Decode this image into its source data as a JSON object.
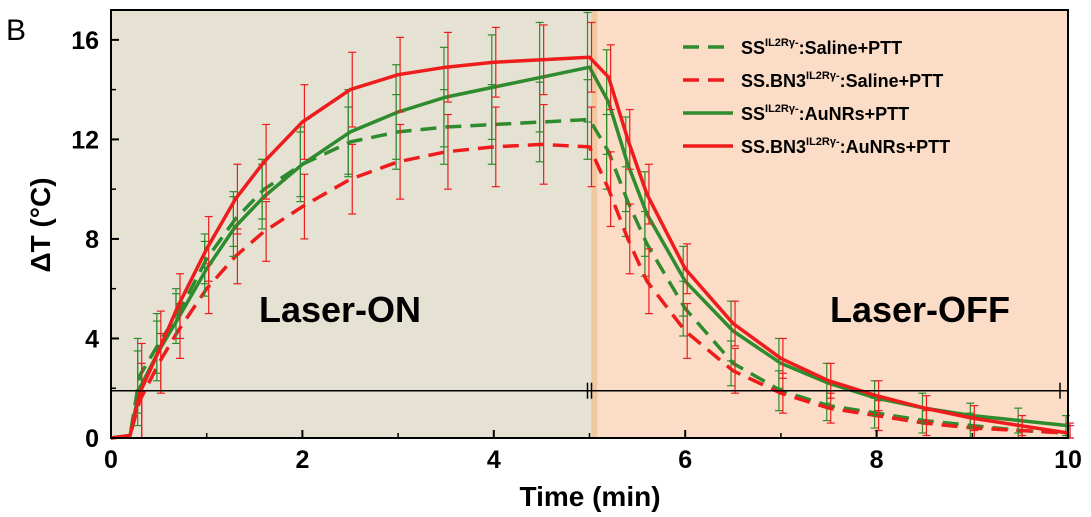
{
  "chart_data": {
    "type": "line",
    "panel_label": "B",
    "xlabel": "Time (min)",
    "ylabel": "ΔT (°C)",
    "xlim": [
      0,
      10
    ],
    "ylim": [
      0,
      17.2
    ],
    "xticks": [
      "0",
      "2",
      "4",
      "6",
      "8",
      "10"
    ],
    "yticks": [
      "0",
      "4",
      "8",
      "12",
      "16"
    ],
    "regions": [
      {
        "label": "Laser-ON",
        "x": [
          0,
          5.05
        ],
        "color": "#e6e2d3"
      },
      {
        "label": "Laser-OFF",
        "x": [
          5.05,
          10
        ],
        "color": "#fbdcc6"
      }
    ],
    "span_bar": {
      "y": 1.9,
      "x": [
        0,
        5,
        10
      ]
    },
    "series": [
      {
        "legend_base": "SS",
        "legend_sup": "IL2Rγ-",
        "legend_rest": ":Saline+PTT",
        "color": "#2e8b2e",
        "dash": true,
        "x": [
          0,
          0.2,
          0.3,
          0.5,
          0.7,
          1.0,
          1.3,
          1.6,
          2.0,
          2.5,
          3.0,
          3.5,
          4.0,
          4.5,
          5.0,
          5.2,
          5.4,
          5.6,
          6.0,
          6.5,
          7.0,
          7.5,
          8.0,
          8.5,
          9.0,
          9.5,
          10.0
        ],
        "y": [
          0,
          0.1,
          2.5,
          3.8,
          5.0,
          7.2,
          8.8,
          10.0,
          11.0,
          11.9,
          12.3,
          12.5,
          12.6,
          12.7,
          12.8,
          11.5,
          9.5,
          7.8,
          5.2,
          3.0,
          1.9,
          1.3,
          1.0,
          0.7,
          0.5,
          0.3,
          0.2
        ],
        "err": [
          0,
          0,
          1.5,
          1.2,
          1.0,
          1.0,
          1.1,
          1.2,
          1.3,
          1.4,
          1.5,
          1.5,
          1.6,
          1.6,
          1.6,
          1.5,
          1.4,
          1.3,
          1.1,
          0.9,
          0.8,
          0.6,
          0.6,
          0.5,
          0.5,
          0.4,
          0.3
        ]
      },
      {
        "legend_base": "SS.BN3",
        "legend_sup": "IL2Rγ-",
        "legend_rest": ":Saline+PTT",
        "color": "#ee1c1c",
        "dash": true,
        "x": [
          0,
          0.2,
          0.3,
          0.5,
          0.7,
          1.0,
          1.3,
          1.6,
          2.0,
          2.5,
          3.0,
          3.5,
          4.0,
          4.5,
          5.0,
          5.2,
          5.4,
          5.6,
          6.0,
          6.5,
          7.0,
          7.5,
          8.0,
          8.5,
          9.0,
          9.5,
          10.0
        ],
        "y": [
          0,
          0.1,
          1.5,
          3.0,
          4.3,
          6.0,
          7.3,
          8.3,
          9.3,
          10.4,
          11.1,
          11.5,
          11.7,
          11.8,
          11.7,
          10.0,
          8.0,
          6.3,
          4.3,
          2.7,
          1.8,
          1.2,
          0.9,
          0.6,
          0.4,
          0.3,
          0.2
        ],
        "err": [
          0,
          0,
          1.5,
          1.2,
          1.1,
          1.0,
          1.1,
          1.2,
          1.3,
          1.4,
          1.5,
          1.5,
          1.6,
          1.6,
          1.6,
          1.5,
          1.4,
          1.3,
          1.1,
          0.9,
          0.8,
          0.6,
          0.6,
          0.5,
          0.5,
          0.4,
          0.3
        ]
      },
      {
        "legend_base": "SS",
        "legend_sup": "IL2Rγ-",
        "legend_rest": ":AuNRs+PTT",
        "color": "#2e8b2e",
        "dash": false,
        "x": [
          0,
          0.2,
          0.3,
          0.5,
          0.7,
          1.0,
          1.3,
          1.6,
          2.0,
          2.5,
          3.0,
          3.5,
          4.0,
          4.5,
          5.0,
          5.2,
          5.4,
          5.6,
          6.0,
          6.5,
          7.0,
          7.5,
          8.0,
          8.5,
          9.0,
          9.5,
          10.0
        ],
        "y": [
          0,
          0.1,
          2.0,
          3.5,
          4.8,
          6.8,
          8.5,
          9.7,
          11.0,
          12.3,
          13.1,
          13.7,
          14.1,
          14.5,
          14.9,
          13.5,
          11.0,
          9.0,
          6.3,
          4.3,
          3.0,
          2.2,
          1.6,
          1.2,
          0.9,
          0.7,
          0.5
        ],
        "err": [
          0,
          0,
          1.5,
          1.2,
          1.0,
          1.1,
          1.2,
          1.3,
          1.5,
          1.7,
          1.9,
          2.0,
          2.1,
          2.2,
          2.2,
          2.1,
          1.9,
          1.7,
          1.4,
          1.2,
          1.0,
          0.8,
          0.7,
          0.6,
          0.5,
          0.5,
          0.4
        ]
      },
      {
        "legend_base": "SS.BN3",
        "legend_sup": "IL2Rγ-",
        "legend_rest": ":AuNRs+PTT",
        "color": "#ee1c1c",
        "dash": false,
        "x": [
          0,
          0.2,
          0.3,
          0.5,
          0.7,
          1.0,
          1.3,
          1.6,
          2.0,
          2.5,
          3.0,
          3.5,
          4.0,
          4.5,
          5.0,
          5.2,
          5.4,
          5.6,
          6.0,
          6.5,
          7.0,
          7.5,
          8.0,
          8.5,
          9.0,
          9.5,
          10.0
        ],
        "y": [
          0,
          0.1,
          1.8,
          3.5,
          5.3,
          7.6,
          9.6,
          11.1,
          12.7,
          14.0,
          14.6,
          14.9,
          15.1,
          15.2,
          15.3,
          14.5,
          12.0,
          9.8,
          6.8,
          4.6,
          3.2,
          2.3,
          1.7,
          1.2,
          0.8,
          0.5,
          0.2
        ],
        "err": [
          0,
          0,
          2.0,
          1.6,
          1.3,
          1.3,
          1.4,
          1.5,
          1.5,
          1.5,
          1.5,
          1.4,
          1.4,
          1.4,
          1.4,
          1.3,
          1.2,
          1.2,
          1.0,
          0.9,
          0.8,
          0.7,
          0.6,
          0.5,
          0.5,
          0.4,
          0.4
        ]
      }
    ]
  }
}
